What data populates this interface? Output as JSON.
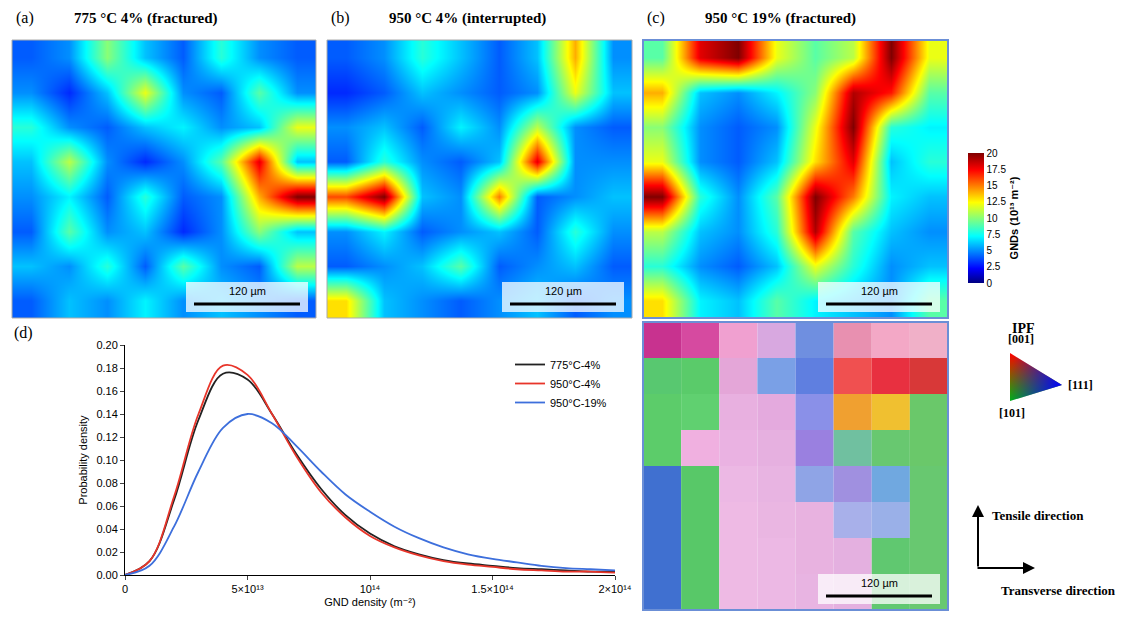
{
  "panels": [
    {
      "letter": "(a)",
      "title": "775 °C 4% (fractured)",
      "scale_bar": "120 µm",
      "gnd_cells": [
        [
          4,
          5,
          10,
          6,
          4,
          8,
          5,
          4
        ],
        [
          5,
          3,
          6,
          12,
          5,
          4,
          9,
          5
        ],
        [
          8,
          5,
          4,
          6,
          7,
          5,
          6,
          12
        ],
        [
          6,
          11,
          5,
          3,
          5,
          9,
          18,
          6
        ],
        [
          5,
          7,
          4,
          8,
          4,
          5,
          14,
          20
        ],
        [
          4,
          9,
          5,
          6,
          3,
          5,
          10,
          6
        ],
        [
          6,
          5,
          8,
          4,
          9,
          5,
          4,
          11
        ],
        [
          4,
          6,
          5,
          7,
          5,
          6,
          5,
          4
        ]
      ]
    },
    {
      "letter": "(b)",
      "title": "950 °C 4% (interrupted)",
      "scale_bar": "120 µm",
      "gnd_cells": [
        [
          4,
          5,
          8,
          6,
          4,
          6,
          14,
          5
        ],
        [
          3,
          4,
          6,
          5,
          4,
          5,
          12,
          6
        ],
        [
          5,
          6,
          4,
          7,
          5,
          11,
          5,
          4
        ],
        [
          4,
          8,
          5,
          4,
          6,
          18,
          5,
          5
        ],
        [
          16,
          20,
          6,
          5,
          15,
          4,
          5,
          6
        ],
        [
          5,
          7,
          4,
          5,
          6,
          4,
          8,
          5
        ],
        [
          4,
          5,
          6,
          9,
          4,
          5,
          6,
          4
        ],
        [
          13,
          6,
          5,
          4,
          5,
          6,
          4,
          5
        ]
      ]
    },
    {
      "letter": "(c)",
      "title": "950 °C 19% (fractured)",
      "scale_bar": "120 µm",
      "gnd_cells": [
        [
          9,
          18,
          20,
          12,
          9,
          11,
          20,
          12
        ],
        [
          14,
          6,
          5,
          7,
          10,
          19,
          17,
          9
        ],
        [
          10,
          5,
          4,
          5,
          12,
          20,
          8,
          7
        ],
        [
          12,
          5,
          4,
          6,
          13,
          18,
          6,
          8
        ],
        [
          20,
          8,
          5,
          9,
          20,
          15,
          7,
          6
        ],
        [
          11,
          6,
          5,
          8,
          19,
          9,
          6,
          5
        ],
        [
          8,
          5,
          4,
          6,
          12,
          8,
          5,
          6
        ],
        [
          13,
          7,
          6,
          9,
          7,
          6,
          5,
          9
        ]
      ]
    }
  ],
  "ipf_map": {
    "scale_bar": "120 µm",
    "cell_colors": [
      [
        "#c8328f",
        "#d64aa0",
        "#f0a0d0",
        "#d8a8e0",
        "#6f8fe0",
        "#e890b0",
        "#f3a8c6",
        "#f0b0c8"
      ],
      [
        "#58c870",
        "#5acb6a",
        "#e4a6d8",
        "#7aa0e6",
        "#5f7fe0",
        "#f05050",
        "#e83040",
        "#d83838"
      ],
      [
        "#5ccc6a",
        "#60d070",
        "#e8b0e0",
        "#e4aade",
        "#8a90e8",
        "#f0a030",
        "#f0c030",
        "#6ac86a"
      ],
      [
        "#5ccc6a",
        "#f0b0e0",
        "#eab2e2",
        "#e6b0e0",
        "#9a80e0",
        "#70c0a0",
        "#68c870",
        "#6ac86a"
      ],
      [
        "#4070d0",
        "#58c868",
        "#ecb8e4",
        "#e8b4e2",
        "#8fa4e6",
        "#a090e0",
        "#70a8e0",
        "#68c870"
      ],
      [
        "#4070d0",
        "#58c868",
        "#eebae4",
        "#eab6e2",
        "#e8b2e0",
        "#a8b0ea",
        "#9ab0e8",
        "#68c870"
      ],
      [
        "#4070d0",
        "#58c868",
        "#eebae4",
        "#ecb8e4",
        "#e8b2e0",
        "#e4b0e0",
        "#60c870",
        "#68c870"
      ],
      [
        "#4070d0",
        "#58c868",
        "#eebae4",
        "#ecb8e4",
        "#e8b4e2",
        "#e4b0e0",
        "#60c870",
        "#68c870"
      ]
    ]
  },
  "colorbar": {
    "title": "GNDs (10¹³ m⁻²)",
    "range": [
      0,
      20
    ],
    "ticks": [
      0,
      2.5,
      5,
      7.5,
      10,
      12.5,
      15,
      17.5,
      20
    ]
  },
  "ipf_key": {
    "title": "IPF",
    "corners": [
      "[001]",
      "[111]",
      "[101]"
    ],
    "colors": [
      "#ff0000",
      "#0000ff",
      "#00c000"
    ]
  },
  "directions": [
    "Tensile direction",
    "Transverse direction"
  ],
  "chart_data": {
    "type": "line",
    "title": "(d)",
    "x_label": "GND density (m⁻²)",
    "y_label": "Probability density",
    "x": [
      0,
      10000000000000.0,
      20000000000000.0,
      30000000000000.0,
      40000000000000.0,
      50000000000000.0,
      60000000000000.0,
      70000000000000.0,
      80000000000000.0,
      90000000000000.0,
      100000000000000.0,
      110000000000000.0,
      120000000000000.0,
      130000000000000.0,
      140000000000000.0,
      150000000000000.0,
      160000000000000.0,
      170000000000000.0,
      180000000000000.0,
      190000000000000.0,
      200000000000000.0
    ],
    "series": [
      {
        "name": "775°C-4%",
        "color": "#222222",
        "values": [
          0,
          0.012,
          0.065,
          0.135,
          0.175,
          0.17,
          0.14,
          0.105,
          0.075,
          0.052,
          0.036,
          0.025,
          0.018,
          0.013,
          0.01,
          0.008,
          0.006,
          0.005,
          0.004,
          0.003,
          0.003
        ]
      },
      {
        "name": "950°C-4%",
        "color": "#e8352a",
        "values": [
          0,
          0.012,
          0.068,
          0.14,
          0.182,
          0.174,
          0.14,
          0.103,
          0.072,
          0.05,
          0.034,
          0.024,
          0.017,
          0.012,
          0.009,
          0.007,
          0.005,
          0.004,
          0.003,
          0.003,
          0.002
        ]
      },
      {
        "name": "950°C-19%",
        "color": "#3d6fdc",
        "values": [
          0,
          0.008,
          0.042,
          0.09,
          0.128,
          0.14,
          0.132,
          0.112,
          0.09,
          0.07,
          0.055,
          0.042,
          0.032,
          0.024,
          0.018,
          0.014,
          0.011,
          0.008,
          0.006,
          0.005,
          0.004
        ]
      }
    ],
    "xlim": [
      0,
      200000000000000.0
    ],
    "ylim": [
      0,
      0.2
    ],
    "xticks": [
      0,
      {
        "value": 50000000000000.0,
        "label": "5×10¹³"
      },
      {
        "value": 100000000000000.0,
        "label": "10¹⁴"
      },
      {
        "value": 150000000000000.0,
        "label": "1.5×10¹⁴"
      },
      {
        "value": 200000000000000.0,
        "label": "2×10¹⁴"
      }
    ],
    "yticks": [
      {
        "value": 0,
        "label": "0.00"
      },
      0.02,
      0.04,
      0.06,
      0.08,
      {
        "value": 0.1,
        "label": "0.10"
      },
      0.12,
      0.14,
      0.16,
      0.18,
      {
        "value": 0.2,
        "label": "0.20"
      }
    ],
    "grid": false,
    "legend": "top right"
  }
}
